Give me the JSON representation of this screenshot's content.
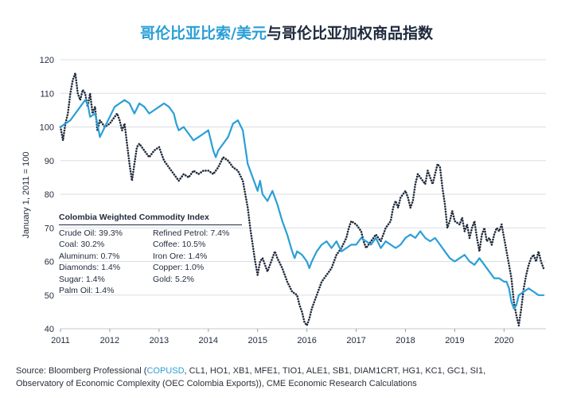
{
  "title": {
    "part1": "哥伦比亚比索/美元",
    "part2": "与哥伦比亚加权商品指数"
  },
  "chart_data": {
    "type": "line",
    "ylabel": "January 1, 2011 = 100",
    "ylim": [
      40,
      120
    ],
    "yticks": [
      "40",
      "50",
      "60",
      "70",
      "80",
      "90",
      "100",
      "110",
      "120"
    ],
    "xlim": [
      2011.0,
      2020.85
    ],
    "xticks": [
      "2011",
      "2012",
      "2013",
      "2014",
      "2015",
      "2016",
      "2017",
      "2018",
      "2019",
      "2020"
    ],
    "grid": "horizontal",
    "series": [
      {
        "name": "哥伦比亚比索/美元",
        "style": "solid",
        "color": "#2a9fd6",
        "points": [
          [
            2011.0,
            100
          ],
          [
            2011.1,
            101
          ],
          [
            2011.2,
            102
          ],
          [
            2011.3,
            104
          ],
          [
            2011.4,
            106
          ],
          [
            2011.5,
            108
          ],
          [
            2011.55,
            107
          ],
          [
            2011.6,
            103
          ],
          [
            2011.7,
            104
          ],
          [
            2011.75,
            101
          ],
          [
            2011.8,
            97
          ],
          [
            2011.9,
            100
          ],
          [
            2012.0,
            103
          ],
          [
            2012.1,
            106
          ],
          [
            2012.2,
            107
          ],
          [
            2012.3,
            108
          ],
          [
            2012.4,
            107
          ],
          [
            2012.5,
            104
          ],
          [
            2012.6,
            107
          ],
          [
            2012.7,
            106
          ],
          [
            2012.8,
            104
          ],
          [
            2012.9,
            105
          ],
          [
            2013.0,
            106
          ],
          [
            2013.1,
            107
          ],
          [
            2013.2,
            106
          ],
          [
            2013.3,
            104
          ],
          [
            2013.35,
            101
          ],
          [
            2013.4,
            99
          ],
          [
            2013.5,
            100
          ],
          [
            2013.6,
            98
          ],
          [
            2013.7,
            96
          ],
          [
            2013.8,
            97
          ],
          [
            2013.9,
            98
          ],
          [
            2014.0,
            99
          ],
          [
            2014.05,
            96
          ],
          [
            2014.1,
            93
          ],
          [
            2014.15,
            91
          ],
          [
            2014.2,
            93
          ],
          [
            2014.3,
            95
          ],
          [
            2014.4,
            97
          ],
          [
            2014.5,
            101
          ],
          [
            2014.6,
            102
          ],
          [
            2014.7,
            99
          ],
          [
            2014.75,
            94
          ],
          [
            2014.8,
            89
          ],
          [
            2014.9,
            85
          ],
          [
            2015.0,
            81
          ],
          [
            2015.05,
            84
          ],
          [
            2015.1,
            80
          ],
          [
            2015.2,
            78
          ],
          [
            2015.3,
            81
          ],
          [
            2015.4,
            77
          ],
          [
            2015.5,
            72
          ],
          [
            2015.6,
            68
          ],
          [
            2015.7,
            63
          ],
          [
            2015.75,
            61
          ],
          [
            2015.8,
            63
          ],
          [
            2015.9,
            62
          ],
          [
            2016.0,
            60
          ],
          [
            2016.05,
            58
          ],
          [
            2016.1,
            60
          ],
          [
            2016.2,
            63
          ],
          [
            2016.3,
            65
          ],
          [
            2016.4,
            66
          ],
          [
            2016.5,
            64
          ],
          [
            2016.6,
            66
          ],
          [
            2016.7,
            63
          ],
          [
            2016.8,
            64
          ],
          [
            2016.9,
            65
          ],
          [
            2017.0,
            65
          ],
          [
            2017.1,
            67
          ],
          [
            2017.2,
            66
          ],
          [
            2017.3,
            65
          ],
          [
            2017.4,
            67
          ],
          [
            2017.5,
            64
          ],
          [
            2017.6,
            66
          ],
          [
            2017.7,
            65
          ],
          [
            2017.8,
            64
          ],
          [
            2017.9,
            65
          ],
          [
            2018.0,
            67
          ],
          [
            2018.1,
            68
          ],
          [
            2018.2,
            67
          ],
          [
            2018.3,
            69
          ],
          [
            2018.4,
            67
          ],
          [
            2018.5,
            66
          ],
          [
            2018.6,
            67
          ],
          [
            2018.7,
            65
          ],
          [
            2018.8,
            63
          ],
          [
            2018.9,
            61
          ],
          [
            2019.0,
            60
          ],
          [
            2019.1,
            61
          ],
          [
            2019.2,
            62
          ],
          [
            2019.3,
            60
          ],
          [
            2019.4,
            59
          ],
          [
            2019.5,
            61
          ],
          [
            2019.6,
            59
          ],
          [
            2019.7,
            57
          ],
          [
            2019.8,
            55
          ],
          [
            2019.9,
            55
          ],
          [
            2020.0,
            54
          ],
          [
            2020.05,
            54
          ],
          [
            2020.1,
            52
          ],
          [
            2020.15,
            48
          ],
          [
            2020.2,
            46
          ],
          [
            2020.25,
            47
          ],
          [
            2020.3,
            50
          ],
          [
            2020.4,
            51
          ],
          [
            2020.5,
            52
          ],
          [
            2020.6,
            51
          ],
          [
            2020.7,
            50
          ],
          [
            2020.8,
            50
          ]
        ]
      },
      {
        "name": "哥伦比亚加权商品指数",
        "style": "dotted",
        "color": "#1f2a3c",
        "points": [
          [
            2011.0,
            100
          ],
          [
            2011.05,
            96
          ],
          [
            2011.1,
            101
          ],
          [
            2011.15,
            104
          ],
          [
            2011.2,
            110
          ],
          [
            2011.25,
            114
          ],
          [
            2011.3,
            116
          ],
          [
            2011.35,
            110
          ],
          [
            2011.4,
            108
          ],
          [
            2011.45,
            111
          ],
          [
            2011.5,
            110
          ],
          [
            2011.55,
            106
          ],
          [
            2011.6,
            110
          ],
          [
            2011.65,
            104
          ],
          [
            2011.7,
            106
          ],
          [
            2011.75,
            99
          ],
          [
            2011.8,
            102
          ],
          [
            2011.9,
            100
          ],
          [
            2012.0,
            101
          ],
          [
            2012.1,
            103
          ],
          [
            2012.15,
            104
          ],
          [
            2012.2,
            102
          ],
          [
            2012.25,
            99
          ],
          [
            2012.3,
            101
          ],
          [
            2012.35,
            95
          ],
          [
            2012.4,
            89
          ],
          [
            2012.45,
            84
          ],
          [
            2012.5,
            89
          ],
          [
            2012.55,
            94
          ],
          [
            2012.6,
            95
          ],
          [
            2012.7,
            93
          ],
          [
            2012.8,
            91
          ],
          [
            2012.9,
            93
          ],
          [
            2013.0,
            94
          ],
          [
            2013.05,
            92
          ],
          [
            2013.1,
            90
          ],
          [
            2013.2,
            88
          ],
          [
            2013.3,
            86
          ],
          [
            2013.4,
            84
          ],
          [
            2013.5,
            86
          ],
          [
            2013.6,
            85
          ],
          [
            2013.7,
            87
          ],
          [
            2013.8,
            86
          ],
          [
            2013.9,
            87
          ],
          [
            2014.0,
            87
          ],
          [
            2014.1,
            86
          ],
          [
            2014.2,
            88
          ],
          [
            2014.3,
            91
          ],
          [
            2014.4,
            90
          ],
          [
            2014.5,
            88
          ],
          [
            2014.6,
            87
          ],
          [
            2014.7,
            84
          ],
          [
            2014.75,
            80
          ],
          [
            2014.8,
            76
          ],
          [
            2014.85,
            70
          ],
          [
            2014.9,
            65
          ],
          [
            2014.95,
            60
          ],
          [
            2015.0,
            56
          ],
          [
            2015.05,
            60
          ],
          [
            2015.1,
            61
          ],
          [
            2015.2,
            57
          ],
          [
            2015.3,
            61
          ],
          [
            2015.35,
            63
          ],
          [
            2015.4,
            61
          ],
          [
            2015.5,
            58
          ],
          [
            2015.55,
            56
          ],
          [
            2015.6,
            54
          ],
          [
            2015.7,
            51
          ],
          [
            2015.8,
            50
          ],
          [
            2015.85,
            47
          ],
          [
            2015.9,
            45
          ],
          [
            2015.95,
            42
          ],
          [
            2016.0,
            41
          ],
          [
            2016.05,
            43
          ],
          [
            2016.1,
            46
          ],
          [
            2016.15,
            48
          ],
          [
            2016.2,
            50
          ],
          [
            2016.3,
            54
          ],
          [
            2016.4,
            56
          ],
          [
            2016.5,
            58
          ],
          [
            2016.6,
            62
          ],
          [
            2016.7,
            64
          ],
          [
            2016.8,
            67
          ],
          [
            2016.85,
            70
          ],
          [
            2016.9,
            72
          ],
          [
            2017.0,
            71
          ],
          [
            2017.1,
            69
          ],
          [
            2017.15,
            66
          ],
          [
            2017.2,
            64
          ],
          [
            2017.3,
            66
          ],
          [
            2017.4,
            68
          ],
          [
            2017.5,
            66
          ],
          [
            2017.6,
            70
          ],
          [
            2017.7,
            72
          ],
          [
            2017.75,
            76
          ],
          [
            2017.8,
            78
          ],
          [
            2017.85,
            76
          ],
          [
            2017.9,
            79
          ],
          [
            2018.0,
            81
          ],
          [
            2018.05,
            79
          ],
          [
            2018.1,
            76
          ],
          [
            2018.15,
            78
          ],
          [
            2018.2,
            83
          ],
          [
            2018.25,
            86
          ],
          [
            2018.3,
            85
          ],
          [
            2018.4,
            83
          ],
          [
            2018.45,
            87
          ],
          [
            2018.5,
            85
          ],
          [
            2018.55,
            83
          ],
          [
            2018.6,
            86
          ],
          [
            2018.65,
            89
          ],
          [
            2018.7,
            88
          ],
          [
            2018.75,
            82
          ],
          [
            2018.8,
            77
          ],
          [
            2018.85,
            70
          ],
          [
            2018.9,
            72
          ],
          [
            2018.95,
            75
          ],
          [
            2019.0,
            72
          ],
          [
            2019.1,
            71
          ],
          [
            2019.15,
            73
          ],
          [
            2019.2,
            69
          ],
          [
            2019.25,
            71
          ],
          [
            2019.3,
            67
          ],
          [
            2019.35,
            70
          ],
          [
            2019.4,
            72
          ],
          [
            2019.45,
            67
          ],
          [
            2019.5,
            63
          ],
          [
            2019.55,
            68
          ],
          [
            2019.6,
            70
          ],
          [
            2019.65,
            66
          ],
          [
            2019.7,
            67
          ],
          [
            2019.75,
            65
          ],
          [
            2019.8,
            68
          ],
          [
            2019.85,
            70
          ],
          [
            2019.9,
            69
          ],
          [
            2019.95,
            71
          ],
          [
            2020.0,
            67
          ],
          [
            2020.05,
            63
          ],
          [
            2020.1,
            59
          ],
          [
            2020.15,
            55
          ],
          [
            2020.2,
            48
          ],
          [
            2020.25,
            44
          ],
          [
            2020.3,
            41
          ],
          [
            2020.35,
            46
          ],
          [
            2020.4,
            52
          ],
          [
            2020.45,
            56
          ],
          [
            2020.5,
            59
          ],
          [
            2020.55,
            61
          ],
          [
            2020.6,
            62
          ],
          [
            2020.65,
            60
          ],
          [
            2020.7,
            63
          ],
          [
            2020.75,
            60
          ],
          [
            2020.8,
            58
          ]
        ]
      }
    ],
    "legend": {
      "title": "Colombia Weighted Commodity Index",
      "col1": [
        "Crude Oil: 39.3%",
        "Coal: 30.2%",
        "Aluminum: 0.7%",
        "Diamonds: 1.4%",
        "Sugar: 1.4%",
        "Palm Oil: 1.4%"
      ],
      "col2": [
        "Refined Petrol: 7.4%",
        "Coffee: 10.5%",
        "Iron Ore: 1.4%",
        "Copper: 1.0%",
        "Gold: 5.2%"
      ]
    }
  },
  "source": {
    "prefix": "Source: Bloomberg Professional (",
    "highlight": "COPUSD",
    "rest": ", CL1, HO1, XB1, MFE1, TIO1, ALE1, SB1, DIAM1CRT, HG1, KC1, GC1, SI1,",
    "line2": "Observatory of Economic Complexity (OEC Colombia Exports)), CME Economic Research Calculations"
  },
  "colors": {
    "accent": "#2a9fd6",
    "dark": "#1f2a3c",
    "grid": "#d9dde3"
  }
}
